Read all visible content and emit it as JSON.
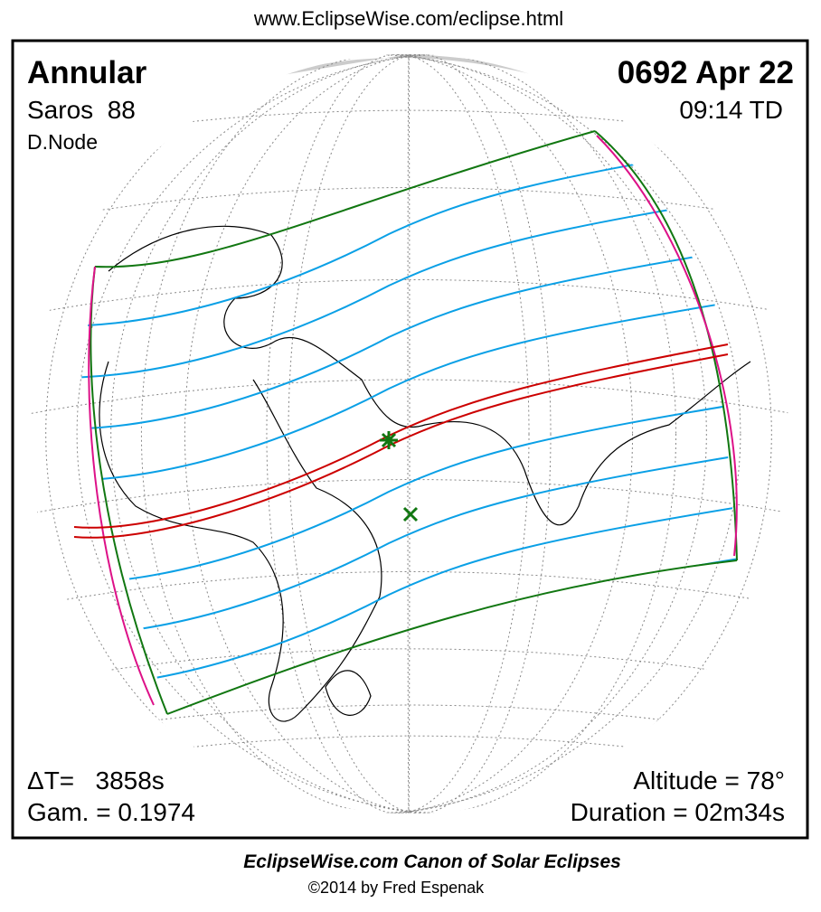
{
  "header": {
    "url": "www.EclipseWise.com/eclipse.html"
  },
  "eclipse": {
    "type": "Annular",
    "date": "0692 Apr 22",
    "saros": "Saros  88",
    "time": "09:14 TD",
    "node": "D.Node",
    "delta_t": "ΔT=   3858s",
    "gamma": "Gam. = 0.1974",
    "altitude": "Altitude = 78°",
    "duration": "Duration = 02m34s"
  },
  "footer": {
    "title": "EclipseWise.com Canon of Solar Eclipses",
    "copyright": "©2014 by Fred Espenak"
  }
}
